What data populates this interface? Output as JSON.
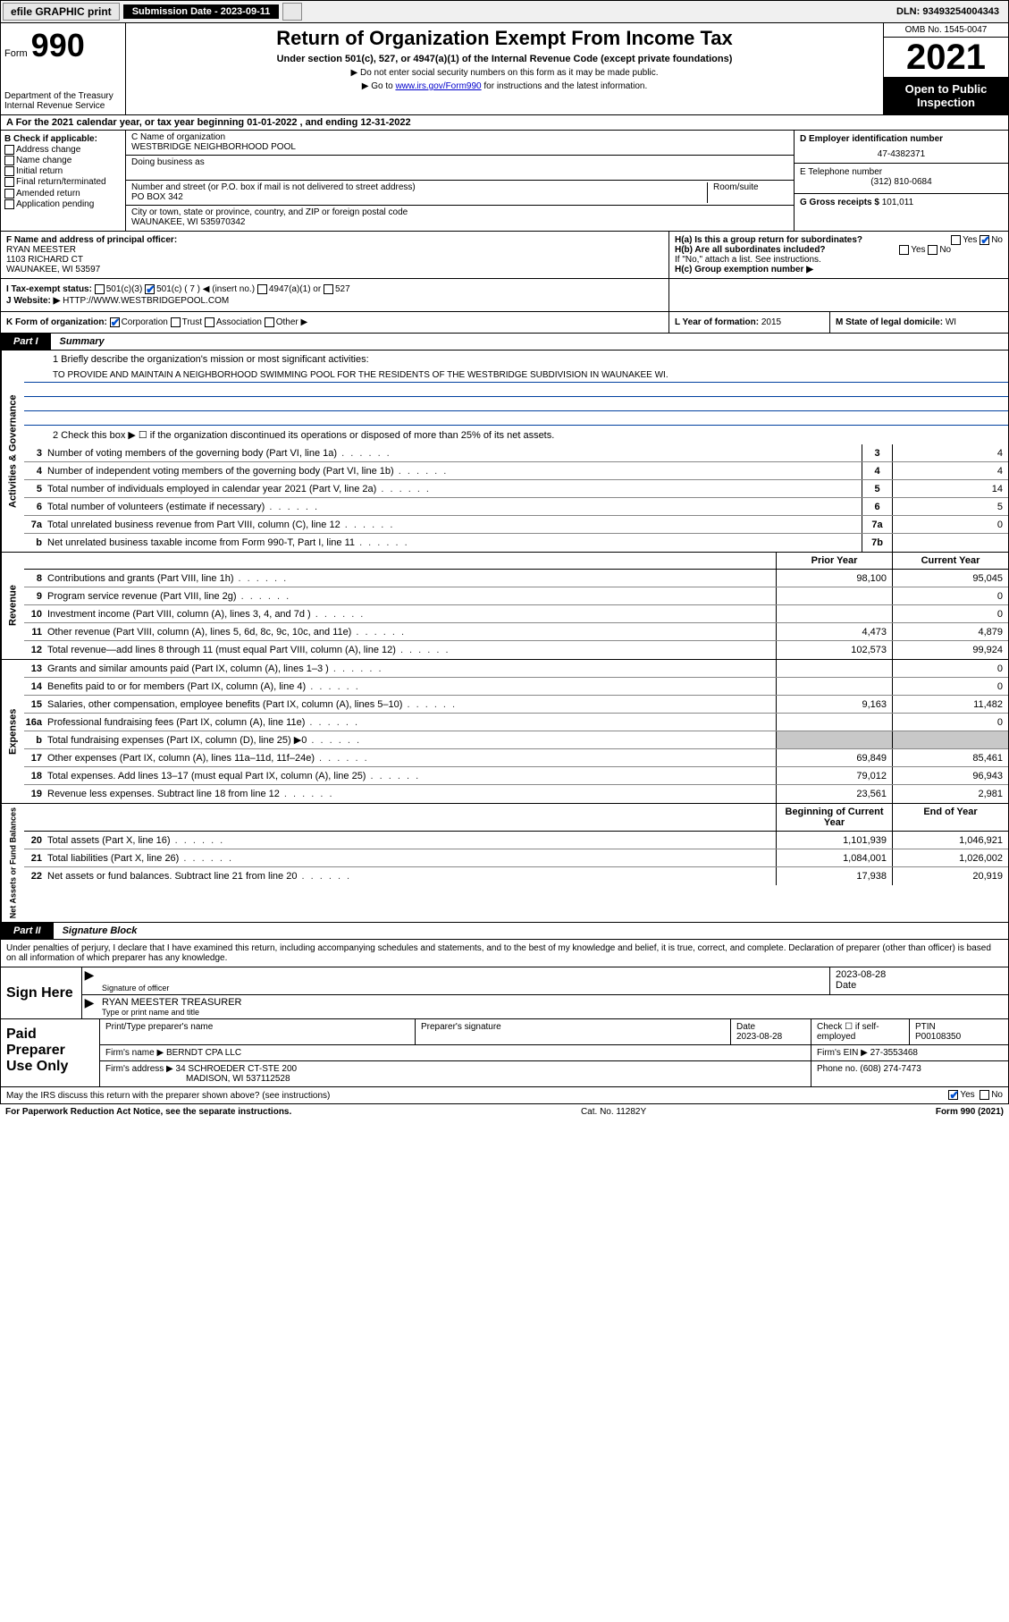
{
  "topbar": {
    "efile": "efile GRAPHIC print",
    "subdate_label": "Submission Date - 2023-09-11",
    "dln": "DLN: 93493254004343"
  },
  "header": {
    "form_word": "Form",
    "form_num": "990",
    "dept": "Department of the Treasury",
    "irs": "Internal Revenue Service",
    "title": "Return of Organization Exempt From Income Tax",
    "sub": "Under section 501(c), 527, or 4947(a)(1) of the Internal Revenue Code (except private foundations)",
    "note1": "▶ Do not enter social security numbers on this form as it may be made public.",
    "note2_pre": "▶ Go to ",
    "note2_link": "www.irs.gov/Form990",
    "note2_post": " for instructions and the latest information.",
    "omb": "OMB No. 1545-0047",
    "year": "2021",
    "open": "Open to Public Inspection"
  },
  "rowA": "A For the 2021 calendar year, or tax year beginning 01-01-2022   , and ending 12-31-2022",
  "colB": {
    "title": "B Check if applicable:",
    "items": [
      "Address change",
      "Name change",
      "Initial return",
      "Final return/terminated",
      "Amended return",
      "Application pending"
    ]
  },
  "colC": {
    "name_label": "C Name of organization",
    "name": "WESTBRIDGE NEIGHBORHOOD POOL",
    "dba_label": "Doing business as",
    "street_label": "Number and street (or P.O. box if mail is not delivered to street address)",
    "street": "PO BOX 342",
    "room_label": "Room/suite",
    "city_label": "City or town, state or province, country, and ZIP or foreign postal code",
    "city": "WAUNAKEE, WI  535970342"
  },
  "colD": {
    "ein_label": "D Employer identification number",
    "ein": "47-4382371",
    "phone_label": "E Telephone number",
    "phone": "(312) 810-0684",
    "gross_label": "G Gross receipts $",
    "gross": "101,011"
  },
  "rowF": {
    "label": "F Name and address of principal officer:",
    "name": "RYAN MEESTER",
    "addr1": "1103 RICHARD CT",
    "addr2": "WAUNAKEE, WI  53597"
  },
  "rowH": {
    "ha": "H(a)  Is this a group return for subordinates?",
    "ha_ans": "No",
    "hb": "H(b)  Are all subordinates included?",
    "hb_note": "If \"No,\" attach a list. See instructions.",
    "hc": "H(c)  Group exemption number ▶"
  },
  "rowI": {
    "label": "I   Tax-exempt status:",
    "opt1": "501(c)(3)",
    "opt2": "501(c) ( 7 ) ◀ (insert no.)",
    "opt3": "4947(a)(1) or",
    "opt4": "527"
  },
  "rowJ": {
    "label": "J   Website: ▶",
    "url": "HTTP://WWW.WESTBRIDGEPOOL.COM"
  },
  "rowK": {
    "label": "K Form of organization:",
    "opt1": "Corporation",
    "opt2": "Trust",
    "opt3": "Association",
    "opt4": "Other ▶"
  },
  "rowL": {
    "label": "L Year of formation:",
    "val": "2015"
  },
  "rowM": {
    "label": "M State of legal domicile:",
    "val": "WI"
  },
  "part1": {
    "tab": "Part I",
    "title": "Summary"
  },
  "mission": {
    "q": "1   Briefly describe the organization's mission or most significant activities:",
    "text": "TO PROVIDE AND MAINTAIN A NEIGHBORHOOD SWIMMING POOL FOR THE RESIDENTS OF THE WESTBRIDGE SUBDIVISION IN WAUNAKEE WI."
  },
  "line2": "2   Check this box ▶ ☐  if the organization discontinued its operations or disposed of more than 25% of its net assets.",
  "governance_lines": [
    {
      "n": "3",
      "d": "Number of voting members of the governing body (Part VI, line 1a)",
      "box": "3",
      "v": "4"
    },
    {
      "n": "4",
      "d": "Number of independent voting members of the governing body (Part VI, line 1b)",
      "box": "4",
      "v": "4"
    },
    {
      "n": "5",
      "d": "Total number of individuals employed in calendar year 2021 (Part V, line 2a)",
      "box": "5",
      "v": "14"
    },
    {
      "n": "6",
      "d": "Total number of volunteers (estimate if necessary)",
      "box": "6",
      "v": "5"
    },
    {
      "n": "7a",
      "d": "Total unrelated business revenue from Part VIII, column (C), line 12",
      "box": "7a",
      "v": "0"
    },
    {
      "n": "b",
      "d": "Net unrelated business taxable income from Form 990-T, Part I, line 11",
      "box": "7b",
      "v": ""
    }
  ],
  "rev_header": {
    "c1": "Prior Year",
    "c2": "Current Year"
  },
  "revenue_lines": [
    {
      "n": "8",
      "d": "Contributions and grants (Part VIII, line 1h)",
      "v1": "98,100",
      "v2": "95,045"
    },
    {
      "n": "9",
      "d": "Program service revenue (Part VIII, line 2g)",
      "v1": "",
      "v2": "0"
    },
    {
      "n": "10",
      "d": "Investment income (Part VIII, column (A), lines 3, 4, and 7d )",
      "v1": "",
      "v2": "0"
    },
    {
      "n": "11",
      "d": "Other revenue (Part VIII, column (A), lines 5, 6d, 8c, 9c, 10c, and 11e)",
      "v1": "4,473",
      "v2": "4,879"
    },
    {
      "n": "12",
      "d": "Total revenue—add lines 8 through 11 (must equal Part VIII, column (A), line 12)",
      "v1": "102,573",
      "v2": "99,924"
    }
  ],
  "expense_lines": [
    {
      "n": "13",
      "d": "Grants and similar amounts paid (Part IX, column (A), lines 1–3 )",
      "v1": "",
      "v2": "0"
    },
    {
      "n": "14",
      "d": "Benefits paid to or for members (Part IX, column (A), line 4)",
      "v1": "",
      "v2": "0"
    },
    {
      "n": "15",
      "d": "Salaries, other compensation, employee benefits (Part IX, column (A), lines 5–10)",
      "v1": "9,163",
      "v2": "11,482"
    },
    {
      "n": "16a",
      "d": "Professional fundraising fees (Part IX, column (A), line 11e)",
      "v1": "",
      "v2": "0"
    },
    {
      "n": "b",
      "d": "Total fundraising expenses (Part IX, column (D), line 25) ▶0",
      "v1": "shade",
      "v2": "shade"
    },
    {
      "n": "17",
      "d": "Other expenses (Part IX, column (A), lines 11a–11d, 11f–24e)",
      "v1": "69,849",
      "v2": "85,461"
    },
    {
      "n": "18",
      "d": "Total expenses. Add lines 13–17 (must equal Part IX, column (A), line 25)",
      "v1": "79,012",
      "v2": "96,943"
    },
    {
      "n": "19",
      "d": "Revenue less expenses. Subtract line 18 from line 12",
      "v1": "23,561",
      "v2": "2,981"
    }
  ],
  "net_header": {
    "c1": "Beginning of Current Year",
    "c2": "End of Year"
  },
  "net_lines": [
    {
      "n": "20",
      "d": "Total assets (Part X, line 16)",
      "v1": "1,101,939",
      "v2": "1,046,921"
    },
    {
      "n": "21",
      "d": "Total liabilities (Part X, line 26)",
      "v1": "1,084,001",
      "v2": "1,026,002"
    },
    {
      "n": "22",
      "d": "Net assets or fund balances. Subtract line 21 from line 20",
      "v1": "17,938",
      "v2": "20,919"
    }
  ],
  "part2": {
    "tab": "Part II",
    "title": "Signature Block"
  },
  "sig_decl": "Under penalties of perjury, I declare that I have examined this return, including accompanying schedules and statements, and to the best of my knowledge and belief, it is true, correct, and complete. Declaration of preparer (other than officer) is based on all information of which preparer has any knowledge.",
  "sign": {
    "label": "Sign Here",
    "sig_label": "Signature of officer",
    "date": "2023-08-28",
    "date_label": "Date",
    "name": "RYAN MEESTER TREASURER",
    "name_label": "Type or print name and title"
  },
  "prep": {
    "label": "Paid Preparer Use Only",
    "h1": "Print/Type preparer's name",
    "h2": "Preparer's signature",
    "h3": "Date",
    "h3v": "2023-08-28",
    "h4": "Check ☐ if self-employed",
    "h5": "PTIN",
    "h5v": "P00108350",
    "firm_label": "Firm's name    ▶",
    "firm": "BERNDT CPA LLC",
    "ein_label": "Firm's EIN ▶",
    "ein": "27-3553468",
    "addr_label": "Firm's address ▶",
    "addr1": "34 SCHROEDER CT-STE 200",
    "addr2": "MADISON, WI  537112528",
    "phone_label": "Phone no.",
    "phone": "(608) 274-7473"
  },
  "discuss": {
    "q": "May the IRS discuss this return with the preparer shown above? (see instructions)",
    "yes": "Yes",
    "no": "No"
  },
  "footer": {
    "left": "For Paperwork Reduction Act Notice, see the separate instructions.",
    "mid": "Cat. No. 11282Y",
    "right": "Form 990 (2021)"
  },
  "sidebars": {
    "gov": "Activities & Governance",
    "rev": "Revenue",
    "exp": "Expenses",
    "net": "Net Assets or Fund Balances"
  }
}
